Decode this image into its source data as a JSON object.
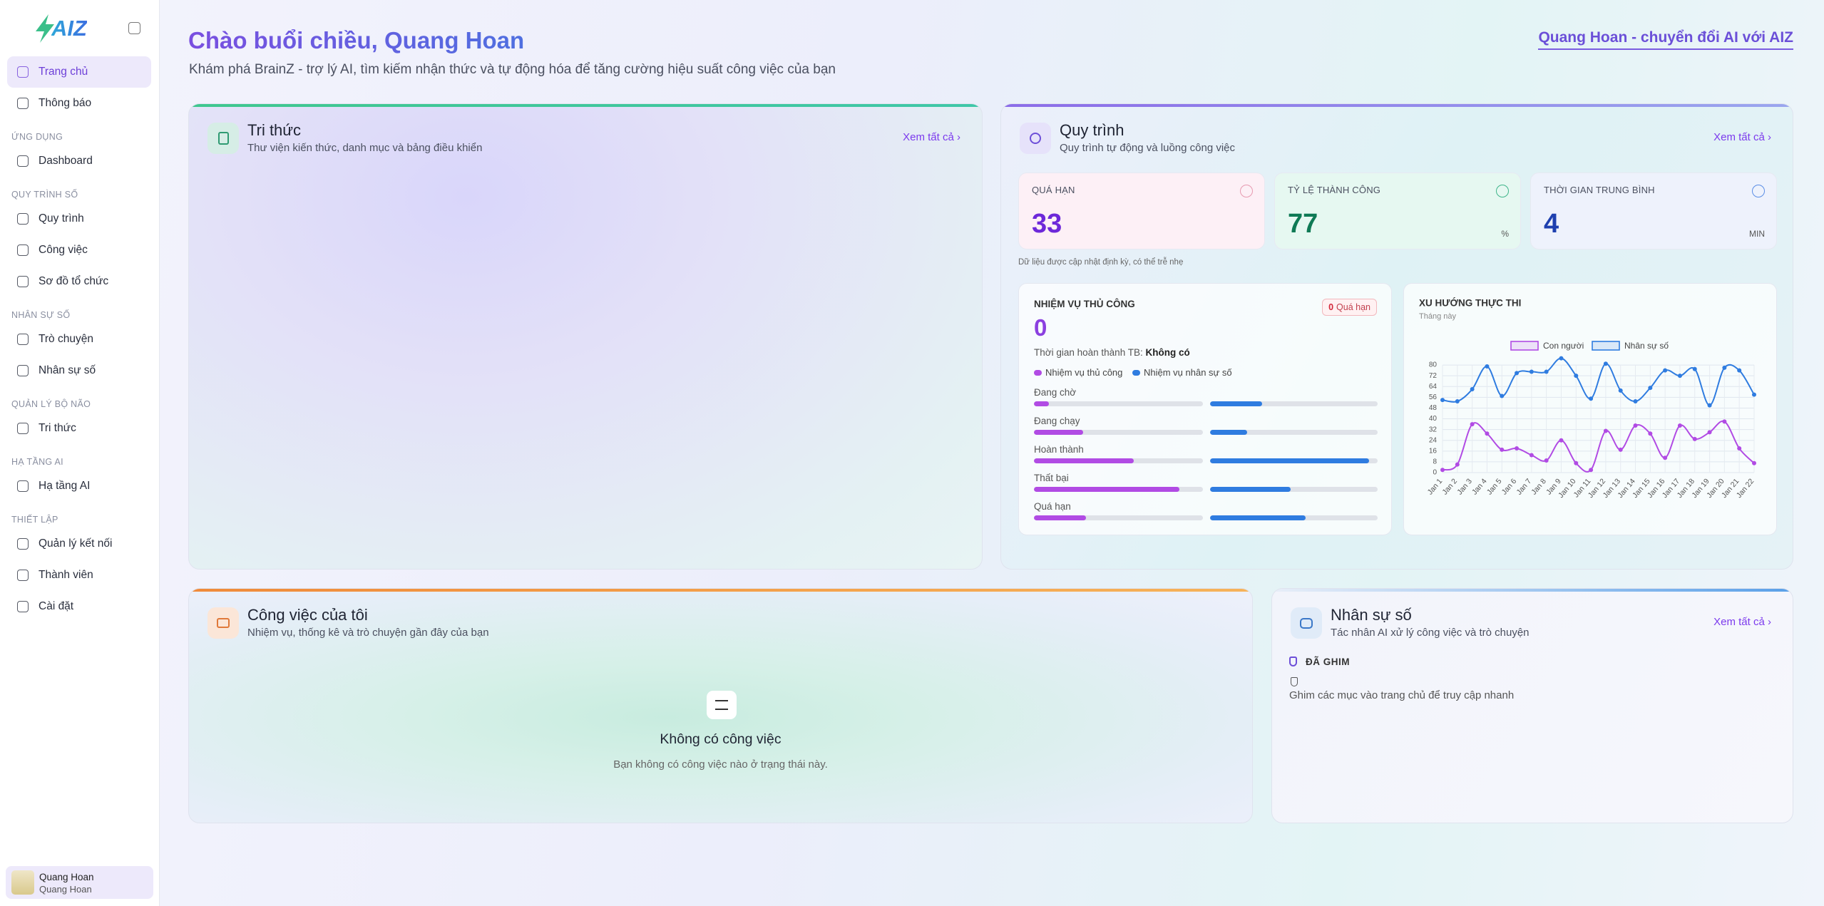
{
  "sidebar": {
    "brand": "AIZ",
    "nav": [
      "Trang chủ",
      "Thông báo"
    ],
    "sections": [
      {
        "title": "ỨNG DỤNG",
        "items": [
          "Dashboard"
        ]
      },
      {
        "title": "QUY TRÌNH SỐ",
        "items": [
          "Quy trình",
          "Công việc",
          "Sơ đồ tổ chức"
        ]
      },
      {
        "title": "NHÂN SỰ SỐ",
        "items": [
          "Trò chuyện",
          "Nhân sự số"
        ]
      },
      {
        "title": "QUẢN LÝ BỘ NÃO",
        "items": [
          "Tri thức"
        ]
      },
      {
        "title": "HẠ TẦNG AI",
        "items": [
          "Hạ tầng AI"
        ]
      },
      {
        "title": "THIẾT LẬP",
        "items": [
          "Quản lý kết nối",
          "Thành viên",
          "Cài đặt"
        ]
      }
    ],
    "user": {
      "name": "Quang Hoan",
      "org": "Quang Hoan"
    }
  },
  "header": {
    "title": "Chào buổi chiều, Quang Hoan",
    "subtitle": "Khám phá BrainZ - trợ lý AI, tìm kiếm nhận thức và tự động hóa để tăng cường hiệu suất công việc của bạn",
    "link": "Quang Hoan - chuyển đổi AI với AIZ"
  },
  "knowledge": {
    "title": "Tri thức",
    "subtitle": "Thư viện kiến thức, danh mục và bảng điều khiển",
    "view_all": "Xem tất cả"
  },
  "process": {
    "title": "Quy trình",
    "subtitle": "Quy trình tự động và luồng công việc",
    "view_all": "Xem tất cả",
    "stats": [
      {
        "label": "QUÁ HẠN",
        "value": 33
      },
      {
        "label": "TỶ LỆ THÀNH CÔNG",
        "value": 77,
        "unit": "%"
      },
      {
        "label": "THỜI GIAN TRUNG BÌNH",
        "value": 4,
        "unit": "MIN"
      }
    ],
    "note": "Dữ liệu được cập nhật định kỳ, có thể trễ nhẹ",
    "manual": {
      "title": "NHIỆM VỤ THỦ CÔNG",
      "count": 0,
      "badge_count": 0,
      "badge_label": "Quá hạn",
      "avg_label": "Thời gian hoàn thành TB:",
      "avg_value": "Không có",
      "legend": [
        {
          "name": "Nhiệm vụ thủ công",
          "color": "#b14be4"
        },
        {
          "name": "Nhiệm vụ nhân sự số",
          "color": "#2f7ce0"
        }
      ],
      "xlim": [
        0,
        100
      ],
      "rows": [
        {
          "label": "Đang chờ",
          "manual": 9,
          "digital": 31
        },
        {
          "label": "Đang chạy",
          "manual": 29,
          "digital": 22
        },
        {
          "label": "Hoàn thành",
          "manual": 59,
          "digital": 95
        },
        {
          "label": "Thất bại",
          "manual": 86,
          "digital": 48
        },
        {
          "label": "Quá hạn",
          "manual": 31,
          "digital": 57
        }
      ]
    }
  },
  "chart_data": {
    "type": "line",
    "title": "XU HƯỚNG THỰC THI",
    "subtitle": "Tháng này",
    "categories": [
      "Jan 1",
      "Jan 2",
      "Jan 3",
      "Jan 4",
      "Jan 5",
      "Jan 6",
      "Jan 7",
      "Jan 8",
      "Jan 9",
      "Jan 10",
      "Jan 11",
      "Jan 12",
      "Jan 13",
      "Jan 14",
      "Jan 15",
      "Jan 16",
      "Jan 17",
      "Jan 18",
      "Jan 19",
      "Jan 20",
      "Jan 21",
      "Jan 22"
    ],
    "series": [
      {
        "name": "Con người",
        "color": "#b14be4",
        "values": [
          2,
          6,
          36,
          29,
          17,
          18,
          13,
          9,
          24,
          7,
          2,
          31,
          17,
          35,
          29,
          11,
          35,
          25,
          30,
          38,
          18,
          7
        ]
      },
      {
        "name": "Nhân sự số",
        "color": "#2f7ce0",
        "values": [
          54,
          53,
          62,
          79,
          57,
          74,
          75,
          75,
          85,
          72,
          55,
          81,
          61,
          53,
          63,
          76,
          72,
          77,
          50,
          78,
          76,
          58
        ]
      }
    ],
    "ylim": [
      0,
      88
    ],
    "yticks": [
      0,
      8,
      16,
      24,
      32,
      40,
      48,
      56,
      64,
      72,
      80
    ],
    "grid": true
  },
  "tasks": {
    "title": "Công việc của tôi",
    "subtitle": "Nhiệm vụ, thống kê và trò chuyện gần đây của bạn",
    "empty_title": "Không có công việc",
    "empty_text": "Bạn không có công việc nào ở trạng thái này."
  },
  "agents": {
    "title": "Nhân sự số",
    "subtitle": "Tác nhân AI xử lý công việc và trò chuyện",
    "view_all": "Xem tất cả",
    "pinned": "ĐÃ GHIM",
    "pinned_empty": "Ghim các mục vào trang chủ để truy cập nhanh"
  }
}
